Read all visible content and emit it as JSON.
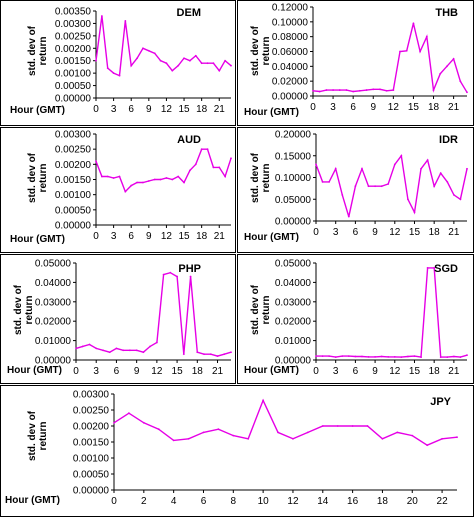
{
  "series_color": "#e600e6",
  "chart_data": [
    {
      "type": "line",
      "title": "DEM",
      "xlabel": "Hour (GMT)",
      "ylabel": "std. dev of return",
      "x": [
        0,
        1,
        2,
        3,
        4,
        5,
        6,
        7,
        8,
        9,
        10,
        11,
        12,
        13,
        14,
        15,
        16,
        17,
        18,
        19,
        20,
        21,
        22,
        23
      ],
      "values": [
        0.0015,
        0.0033,
        0.0012,
        0.001,
        0.0009,
        0.0031,
        0.0013,
        0.0016,
        0.002,
        0.0019,
        0.0018,
        0.0015,
        0.0014,
        0.0011,
        0.0013,
        0.0016,
        0.0015,
        0.0017,
        0.0014,
        0.0014,
        0.0014,
        0.0011,
        0.0015,
        0.0013
      ],
      "ylim": [
        0,
        0.0035
      ],
      "yticks": [
        "0.00000",
        "0.00050",
        "0.00100",
        "0.00150",
        "0.00200",
        "0.00250",
        "0.00300",
        "0.00350"
      ],
      "xticks": [
        "0",
        "3",
        "6",
        "9",
        "12",
        "15",
        "18",
        "21"
      ]
    },
    {
      "type": "line",
      "title": "THB",
      "xlabel": "Hour (GMT)",
      "ylabel": "std. dev of return",
      "x": [
        0,
        1,
        2,
        3,
        4,
        5,
        6,
        7,
        8,
        9,
        10,
        11,
        12,
        13,
        14,
        15,
        16,
        17,
        18,
        19,
        20,
        21,
        22,
        23
      ],
      "values": [
        0.007,
        0.006,
        0.008,
        0.008,
        0.008,
        0.008,
        0.006,
        0.007,
        0.008,
        0.009,
        0.009,
        0.007,
        0.008,
        0.06,
        0.061,
        0.098,
        0.06,
        0.08,
        0.008,
        0.03,
        0.04,
        0.05,
        0.02,
        0.005
      ],
      "ylim": [
        0,
        0.12
      ],
      "yticks": [
        "0.00000",
        "0.02000",
        "0.04000",
        "0.06000",
        "0.08000",
        "0.10000",
        "0.12000"
      ],
      "xticks": [
        "0",
        "3",
        "6",
        "9",
        "12",
        "15",
        "18",
        "21"
      ]
    },
    {
      "type": "line",
      "title": "AUD",
      "xlabel": "Hour (GMT)",
      "ylabel": "std. dev of return",
      "x": [
        0,
        1,
        2,
        3,
        4,
        5,
        6,
        7,
        8,
        9,
        10,
        11,
        12,
        13,
        14,
        15,
        16,
        17,
        18,
        19,
        20,
        21,
        22,
        23
      ],
      "values": [
        0.0021,
        0.0016,
        0.0016,
        0.00155,
        0.0016,
        0.0011,
        0.0013,
        0.0014,
        0.0014,
        0.00145,
        0.0015,
        0.0015,
        0.00155,
        0.0015,
        0.0016,
        0.0014,
        0.0018,
        0.002,
        0.0025,
        0.0025,
        0.0019,
        0.0019,
        0.0016,
        0.0022
      ],
      "ylim": [
        0,
        0.003
      ],
      "yticks": [
        "0.00000",
        "0.00050",
        "0.00100",
        "0.00150",
        "0.00200",
        "0.00250",
        "0.00300"
      ],
      "xticks": [
        "0",
        "3",
        "6",
        "9",
        "12",
        "15",
        "18",
        "21"
      ]
    },
    {
      "type": "line",
      "title": "IDR",
      "xlabel": "Hour (GMT)",
      "ylabel": "std. dev of return",
      "x": [
        0,
        1,
        2,
        3,
        4,
        5,
        6,
        7,
        8,
        9,
        10,
        11,
        12,
        13,
        14,
        15,
        16,
        17,
        18,
        19,
        20,
        21,
        22,
        23
      ],
      "values": [
        0.13,
        0.09,
        0.09,
        0.12,
        0.06,
        0.01,
        0.08,
        0.12,
        0.08,
        0.08,
        0.08,
        0.085,
        0.13,
        0.15,
        0.05,
        0.02,
        0.12,
        0.14,
        0.08,
        0.11,
        0.09,
        0.06,
        0.05,
        0.12
      ],
      "ylim": [
        0,
        0.2
      ],
      "yticks": [
        "0.00000",
        "0.05000",
        "0.10000",
        "0.15000",
        "0.20000"
      ],
      "xticks": [
        "0",
        "3",
        "6",
        "9",
        "12",
        "15",
        "18",
        "21"
      ]
    },
    {
      "type": "line",
      "title": "PHP",
      "xlabel": "Hour (GMT)",
      "ylabel": "std. dev of return",
      "x": [
        0,
        1,
        2,
        3,
        4,
        5,
        6,
        7,
        8,
        9,
        10,
        11,
        12,
        13,
        14,
        15,
        16,
        17,
        18,
        19,
        20,
        21,
        22,
        23
      ],
      "values": [
        0.006,
        0.007,
        0.008,
        0.006,
        0.005,
        0.004,
        0.006,
        0.005,
        0.005,
        0.005,
        0.004,
        0.007,
        0.009,
        0.044,
        0.045,
        0.043,
        0.003,
        0.043,
        0.004,
        0.003,
        0.003,
        0.002,
        0.003,
        0.004
      ],
      "ylim": [
        0,
        0.05
      ],
      "yticks": [
        "0.00000",
        "0.01000",
        "0.02000",
        "0.03000",
        "0.04000",
        "0.05000"
      ],
      "xticks": [
        "0",
        "3",
        "6",
        "9",
        "12",
        "15",
        "18",
        "21"
      ]
    },
    {
      "type": "line",
      "title": "SGD",
      "xlabel": "Hour (GMT)",
      "ylabel": "std. dev of return",
      "x": [
        0,
        1,
        2,
        3,
        4,
        5,
        6,
        7,
        8,
        9,
        10,
        11,
        12,
        13,
        14,
        15,
        16,
        17,
        18,
        19,
        20,
        21,
        22,
        23
      ],
      "values": [
        0.002,
        0.002,
        0.002,
        0.0015,
        0.002,
        0.002,
        0.0018,
        0.0018,
        0.0016,
        0.0016,
        0.0018,
        0.0016,
        0.0016,
        0.0015,
        0.0018,
        0.002,
        0.0015,
        0.0475,
        0.0475,
        0.0015,
        0.0015,
        0.0018,
        0.0015,
        0.0025
      ],
      "ylim": [
        0,
        0.05
      ],
      "yticks": [
        "0.00000",
        "0.01000",
        "0.02000",
        "0.03000",
        "0.04000",
        "0.05000"
      ],
      "xticks": [
        "0",
        "3",
        "6",
        "9",
        "12",
        "15",
        "18",
        "21"
      ]
    },
    {
      "type": "line",
      "title": "JPY",
      "xlabel": "Hour (GMT)",
      "ylabel": "std. dev of return",
      "x": [
        0,
        1,
        2,
        3,
        4,
        5,
        6,
        7,
        8,
        9,
        10,
        11,
        12,
        13,
        14,
        15,
        16,
        17,
        18,
        19,
        20,
        21,
        22,
        23
      ],
      "values": [
        0.0021,
        0.0024,
        0.0021,
        0.0019,
        0.00155,
        0.0016,
        0.0018,
        0.0019,
        0.0017,
        0.0016,
        0.0028,
        0.0018,
        0.0016,
        0.0018,
        0.002,
        0.002,
        0.002,
        0.002,
        0.0016,
        0.0018,
        0.0017,
        0.0014,
        0.0016,
        0.00165
      ],
      "ylim": [
        0,
        0.003
      ],
      "yticks": [
        "0.00000",
        "0.00050",
        "0.00100",
        "0.00150",
        "0.00200",
        "0.00250",
        "0.00300"
      ],
      "xticks": [
        "0",
        "2",
        "4",
        "6",
        "8",
        "10",
        "12",
        "14",
        "16",
        "18",
        "20",
        "22"
      ]
    }
  ]
}
